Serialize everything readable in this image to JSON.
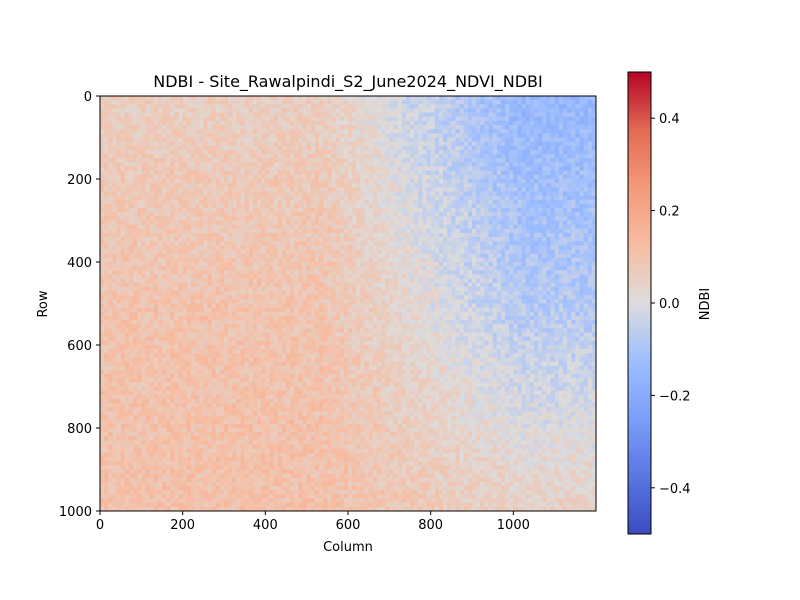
{
  "chart_data": {
    "type": "heatmap",
    "title": "NDBI - Site_Rawalpindi_S2_June2024_NDVI_NDBI",
    "xlabel": "Column",
    "ylabel": "Row",
    "xlim": [
      0,
      1200
    ],
    "ylim": [
      1000,
      0
    ],
    "xticks": [
      0,
      200,
      400,
      600,
      800,
      1000
    ],
    "yticks": [
      0,
      200,
      400,
      600,
      800,
      1000
    ],
    "x_tick_labels": [
      "0",
      "200",
      "400",
      "600",
      "800",
      "1000"
    ],
    "y_tick_labels": [
      "0",
      "200",
      "400",
      "600",
      "800",
      "1000"
    ],
    "colormap": "coolwarm",
    "colorbar": {
      "label": "NDBI",
      "range": [
        -0.5,
        0.5
      ],
      "ticks": [
        -0.4,
        -0.2,
        0.0,
        0.2,
        0.4
      ],
      "tick_labels": [
        "−0.4",
        "−0.2",
        "0.0",
        "0.2",
        "0.4"
      ]
    },
    "grid": false,
    "field_regions": [
      {
        "region": "top-left",
        "ndbi": 0.06
      },
      {
        "region": "top-right",
        "ndbi": -0.15
      },
      {
        "region": "mid-left",
        "ndbi": 0.1
      },
      {
        "region": "mid-right",
        "ndbi": -0.08
      },
      {
        "region": "bottom-left",
        "ndbi": 0.11
      },
      {
        "region": "bottom-right",
        "ndbi": 0.05
      }
    ]
  }
}
